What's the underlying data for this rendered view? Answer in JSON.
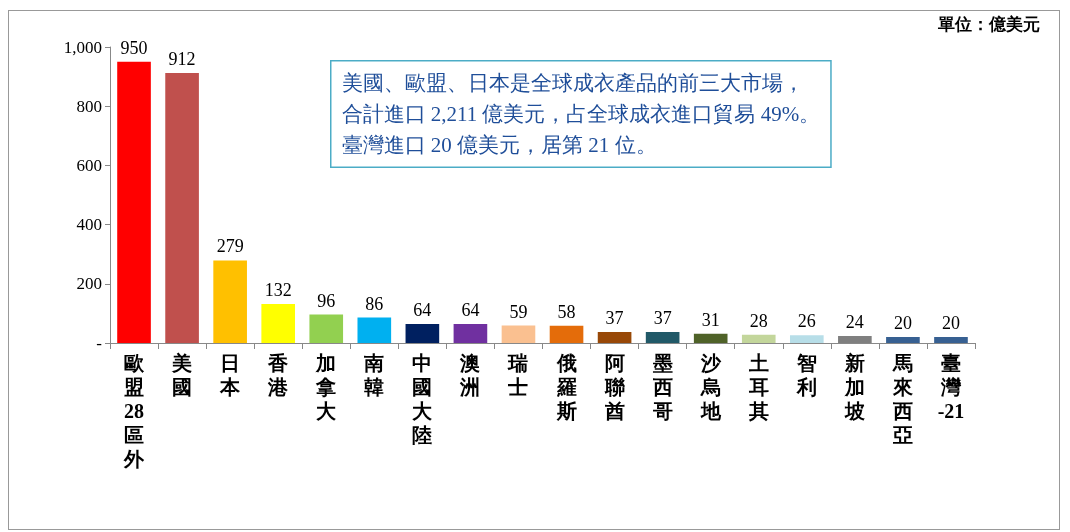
{
  "chart_data": {
    "type": "bar",
    "categories": [
      "歐盟28區外",
      "美國",
      "日本",
      "香港",
      "加拿大",
      "南韓",
      "中國大陸",
      "澳洲",
      "瑞士",
      "俄羅斯",
      "阿聯酋",
      "墨西哥",
      "沙烏地",
      "土耳其",
      "智利",
      "新加坡",
      "馬來西亞",
      "臺灣-21"
    ],
    "values": [
      950,
      912,
      279,
      132,
      96,
      86,
      64,
      64,
      59,
      58,
      37,
      37,
      31,
      28,
      26,
      24,
      20,
      20
    ],
    "colors": [
      "#ff0000",
      "#c0504d",
      "#ffc000",
      "#ffff00",
      "#92d050",
      "#00b0f0",
      "#002060",
      "#7030a0",
      "#fac090",
      "#e46c0a",
      "#984807",
      "#215968",
      "#4f6228",
      "#c3d69b",
      "#b7dee8",
      "#7f7f7f",
      "#376092",
      "#376092"
    ],
    "ylim": [
      0,
      1000
    ],
    "yticks": [
      {
        "value": 0,
        "label": "-"
      },
      200,
      400,
      600,
      800,
      {
        "value": 1000,
        "label": "1,000"
      }
    ],
    "data_labels": true,
    "grid": false,
    "annotations": [
      "單位：億美元",
      "美國、歐盟、日本是全球成衣產品的前三大市場，",
      "合計進口 2,211 億美元，占全球成衣進口貿易 49%。",
      "臺灣進口 20 億美元，居第 21 位。"
    ]
  }
}
